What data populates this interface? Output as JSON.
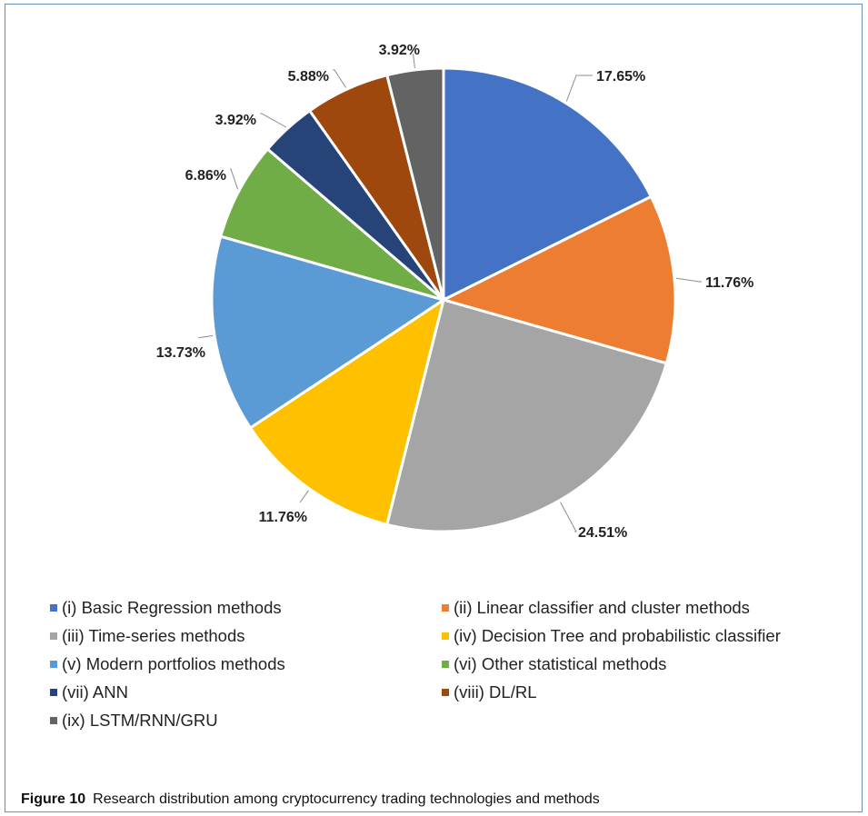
{
  "chart_data": {
    "type": "pie",
    "title": "",
    "categories": [
      "(i) Basic Regression methods",
      "(ii) Linear classifier and cluster methods",
      "(iii) Time-series methods",
      "(iv) Decision Tree and probabilistic classifier",
      "(v) Modern portfolios methods",
      "(vi) Other statistical methods",
      "(vii) ANN",
      "(viii) DL/RL",
      "(ix) LSTM/RNN/GRU"
    ],
    "values": [
      17.65,
      11.76,
      24.51,
      11.76,
      13.73,
      6.86,
      3.92,
      5.88,
      3.92
    ],
    "value_labels": [
      "17.65%",
      "11.76%",
      "24.51%",
      "11.76%",
      "13.73%",
      "6.86%",
      "3.92%",
      "5.88%",
      "3.92%"
    ],
    "colors": [
      "#4472c4",
      "#ed7d31",
      "#a5a5a5",
      "#ffc000",
      "#5b9bd5",
      "#70ad47",
      "#264478",
      "#9e480e",
      "#636363"
    ],
    "start": "12 o'clock",
    "direction": "clockwise",
    "legend_placement": "bottom",
    "data_labels": "outside with leader lines"
  },
  "caption": {
    "label": "Figure 10",
    "text": "Research distribution among cryptocurrency trading technologies and methods"
  }
}
